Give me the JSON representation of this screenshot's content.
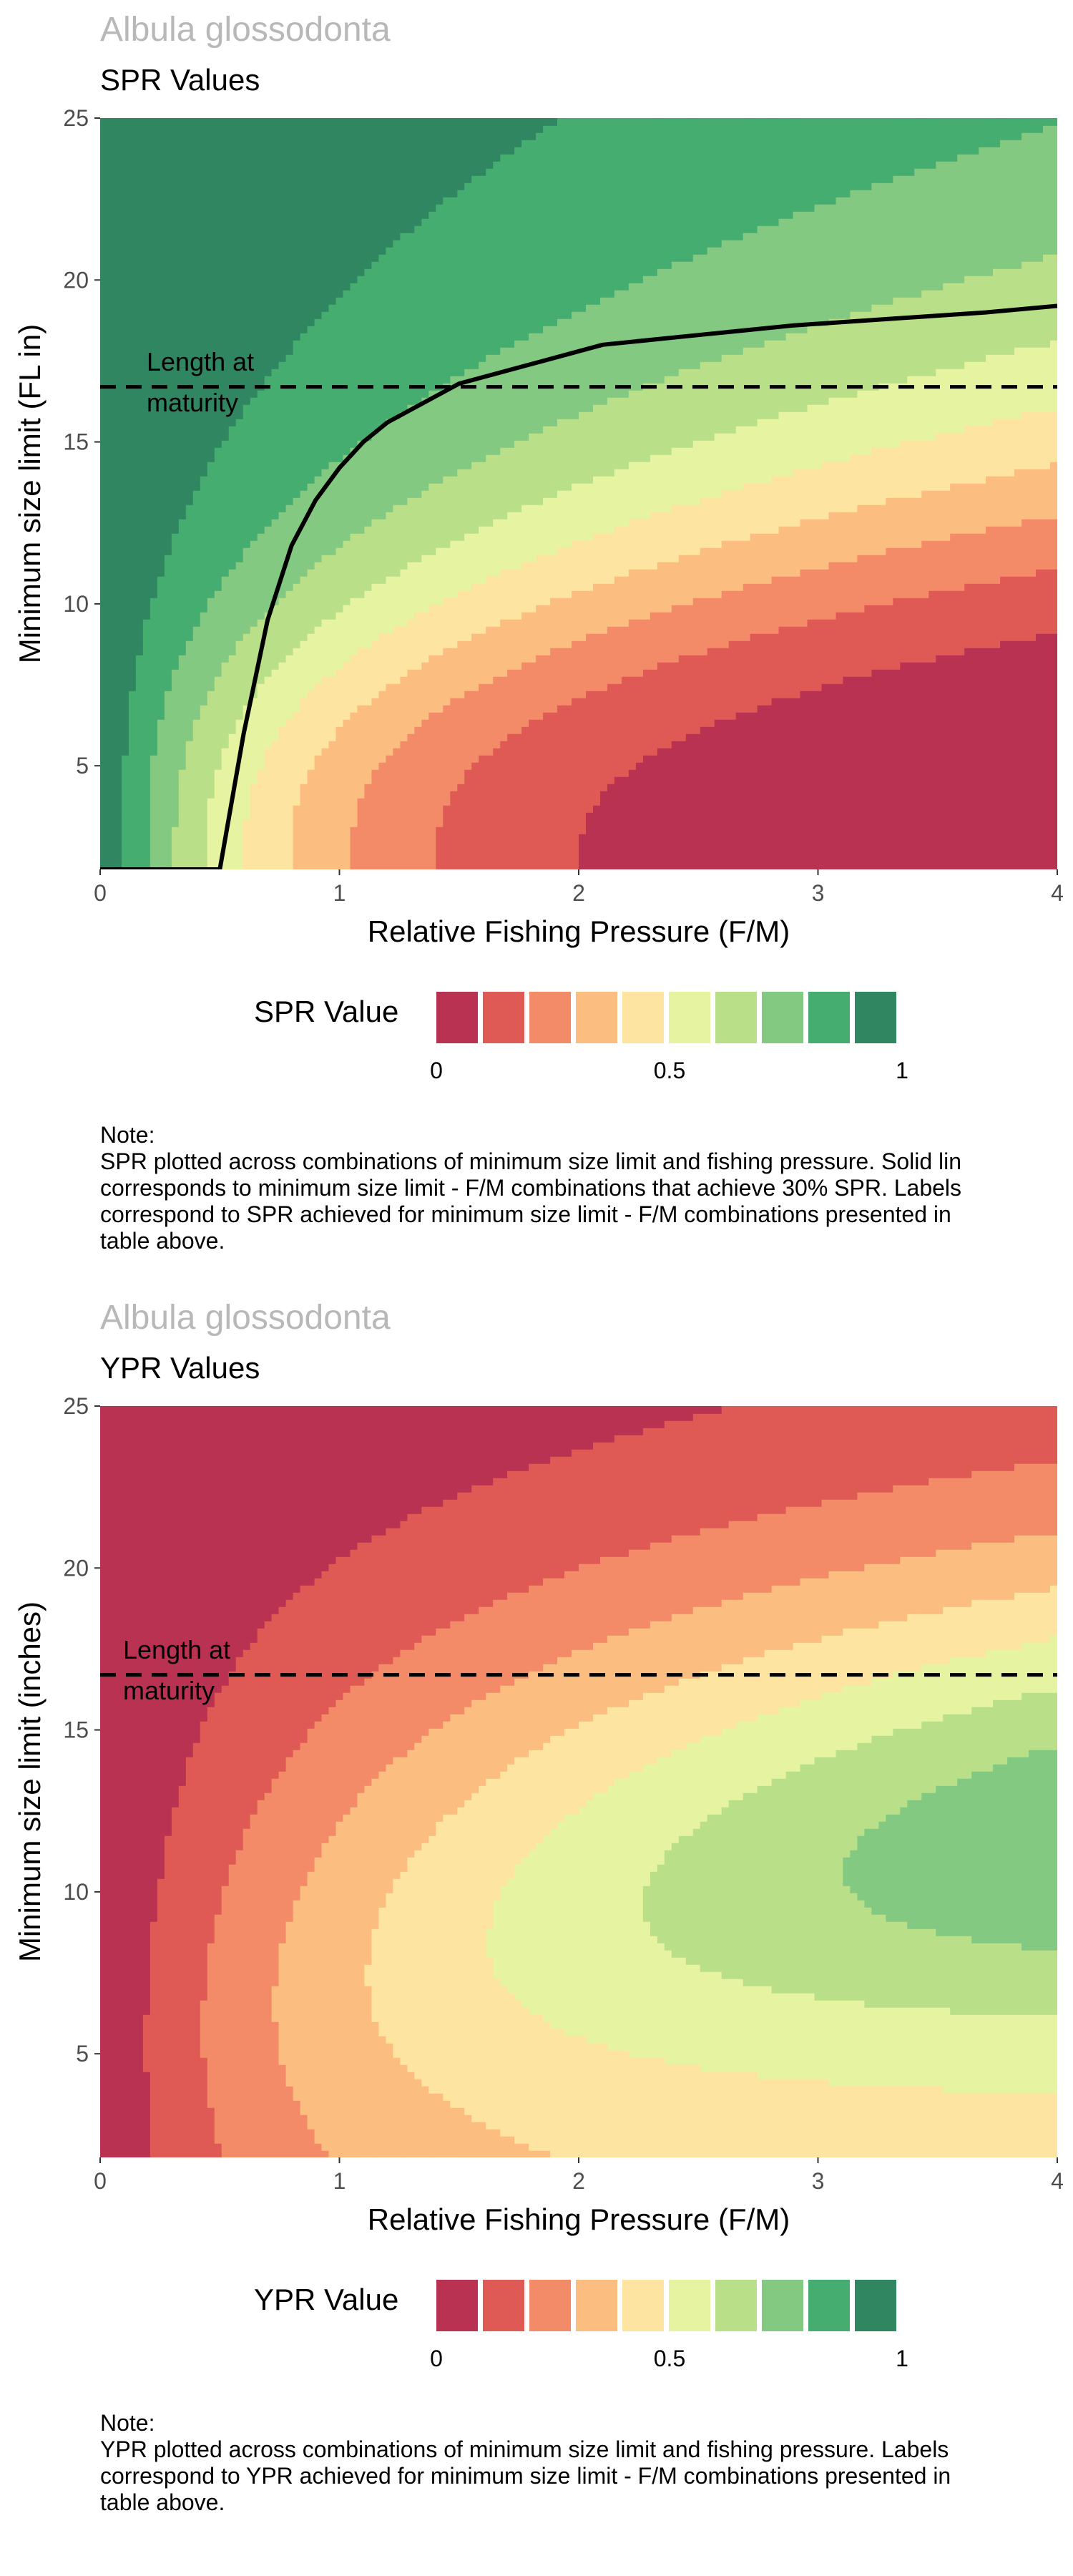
{
  "palette": [
    "#b93251",
    "#e05a55",
    "#f48b68",
    "#fbbd80",
    "#fde4a0",
    "#e6f3a0",
    "#b9e088",
    "#83c981",
    "#45ad70",
    "#318662"
  ],
  "panels": [
    {
      "species": "Albula glossodonta",
      "subtitle": "SPR Values",
      "ylabel": "Minimum size limit (FL in)",
      "legend": {
        "title": "SPR Value",
        "tick_labels": [
          "0",
          "0.5",
          "1"
        ]
      },
      "note": {
        "heading": "Note:",
        "lines": [
          "SPR plotted across combinations of minimum size limit and fishing pressure. Solid lin",
          "corresponds to minimum size limit - F/M combinations that achieve 30% SPR. Labels",
          "correspond to SPR achieved for minimum size limit - F/M combinations presented in",
          "table above."
        ]
      },
      "annotation": {
        "line1": "Length at",
        "line2": "maturity"
      }
    },
    {
      "species": "Albula glossodonta",
      "subtitle": "YPR Values",
      "ylabel": "Minimum size limit (inches)",
      "legend": {
        "title": "YPR Value",
        "tick_labels": [
          "0",
          "0.5",
          "1"
        ]
      },
      "note": {
        "heading": "Note:",
        "lines": [
          "YPR plotted across combinations of minimum size limit and fishing pressure. Labels",
          "correspond to YPR achieved for minimum size limit - F/M combinations presented in",
          "table above."
        ]
      },
      "annotation": {
        "line1": "Length at",
        "line2": "maturity"
      }
    }
  ],
  "chart_data": [
    {
      "type": "heatmap",
      "title": "SPR Values",
      "xlabel": "Relative Fishing Pressure (F/M)",
      "ylabel": "Minimum size limit (FL in)",
      "xlim": [
        0,
        4
      ],
      "ylim": [
        1.8,
        25
      ],
      "xticks": [
        0,
        1,
        2,
        3,
        4
      ],
      "yticks": [
        5,
        10,
        15,
        20,
        25
      ],
      "fill_levels": [
        0,
        0.1,
        0.2,
        0.3,
        0.4,
        0.5,
        0.6,
        0.7,
        0.8,
        0.9,
        1.0
      ],
      "length_at_maturity": 16.7,
      "spr_30_line": {
        "x": [
          0,
          0.5,
          0.6,
          0.7,
          0.8,
          0.9,
          1.0,
          1.1,
          1.2,
          1.5,
          1.8,
          2.1,
          2.5,
          2.9,
          3.3,
          3.7,
          4.0
        ],
        "y": [
          1.8,
          1.8,
          6,
          9.5,
          11.8,
          13.2,
          14.2,
          15.0,
          15.6,
          16.8,
          17.4,
          18.0,
          18.3,
          18.6,
          18.8,
          19.0,
          19.2
        ]
      }
    },
    {
      "type": "heatmap",
      "title": "YPR Values",
      "xlabel": "Relative Fishing Pressure (F/M)",
      "ylabel": "Minimum size limit (inches)",
      "xlim": [
        0,
        4
      ],
      "ylim": [
        1.8,
        25
      ],
      "xticks": [
        0,
        1,
        2,
        3,
        4
      ],
      "yticks": [
        5,
        10,
        15,
        20,
        25
      ],
      "fill_levels": [
        0,
        0.1,
        0.2,
        0.3,
        0.4,
        0.5,
        0.6,
        0.7,
        0.8,
        0.9,
        1.0
      ],
      "length_at_maturity": 16.7
    }
  ]
}
